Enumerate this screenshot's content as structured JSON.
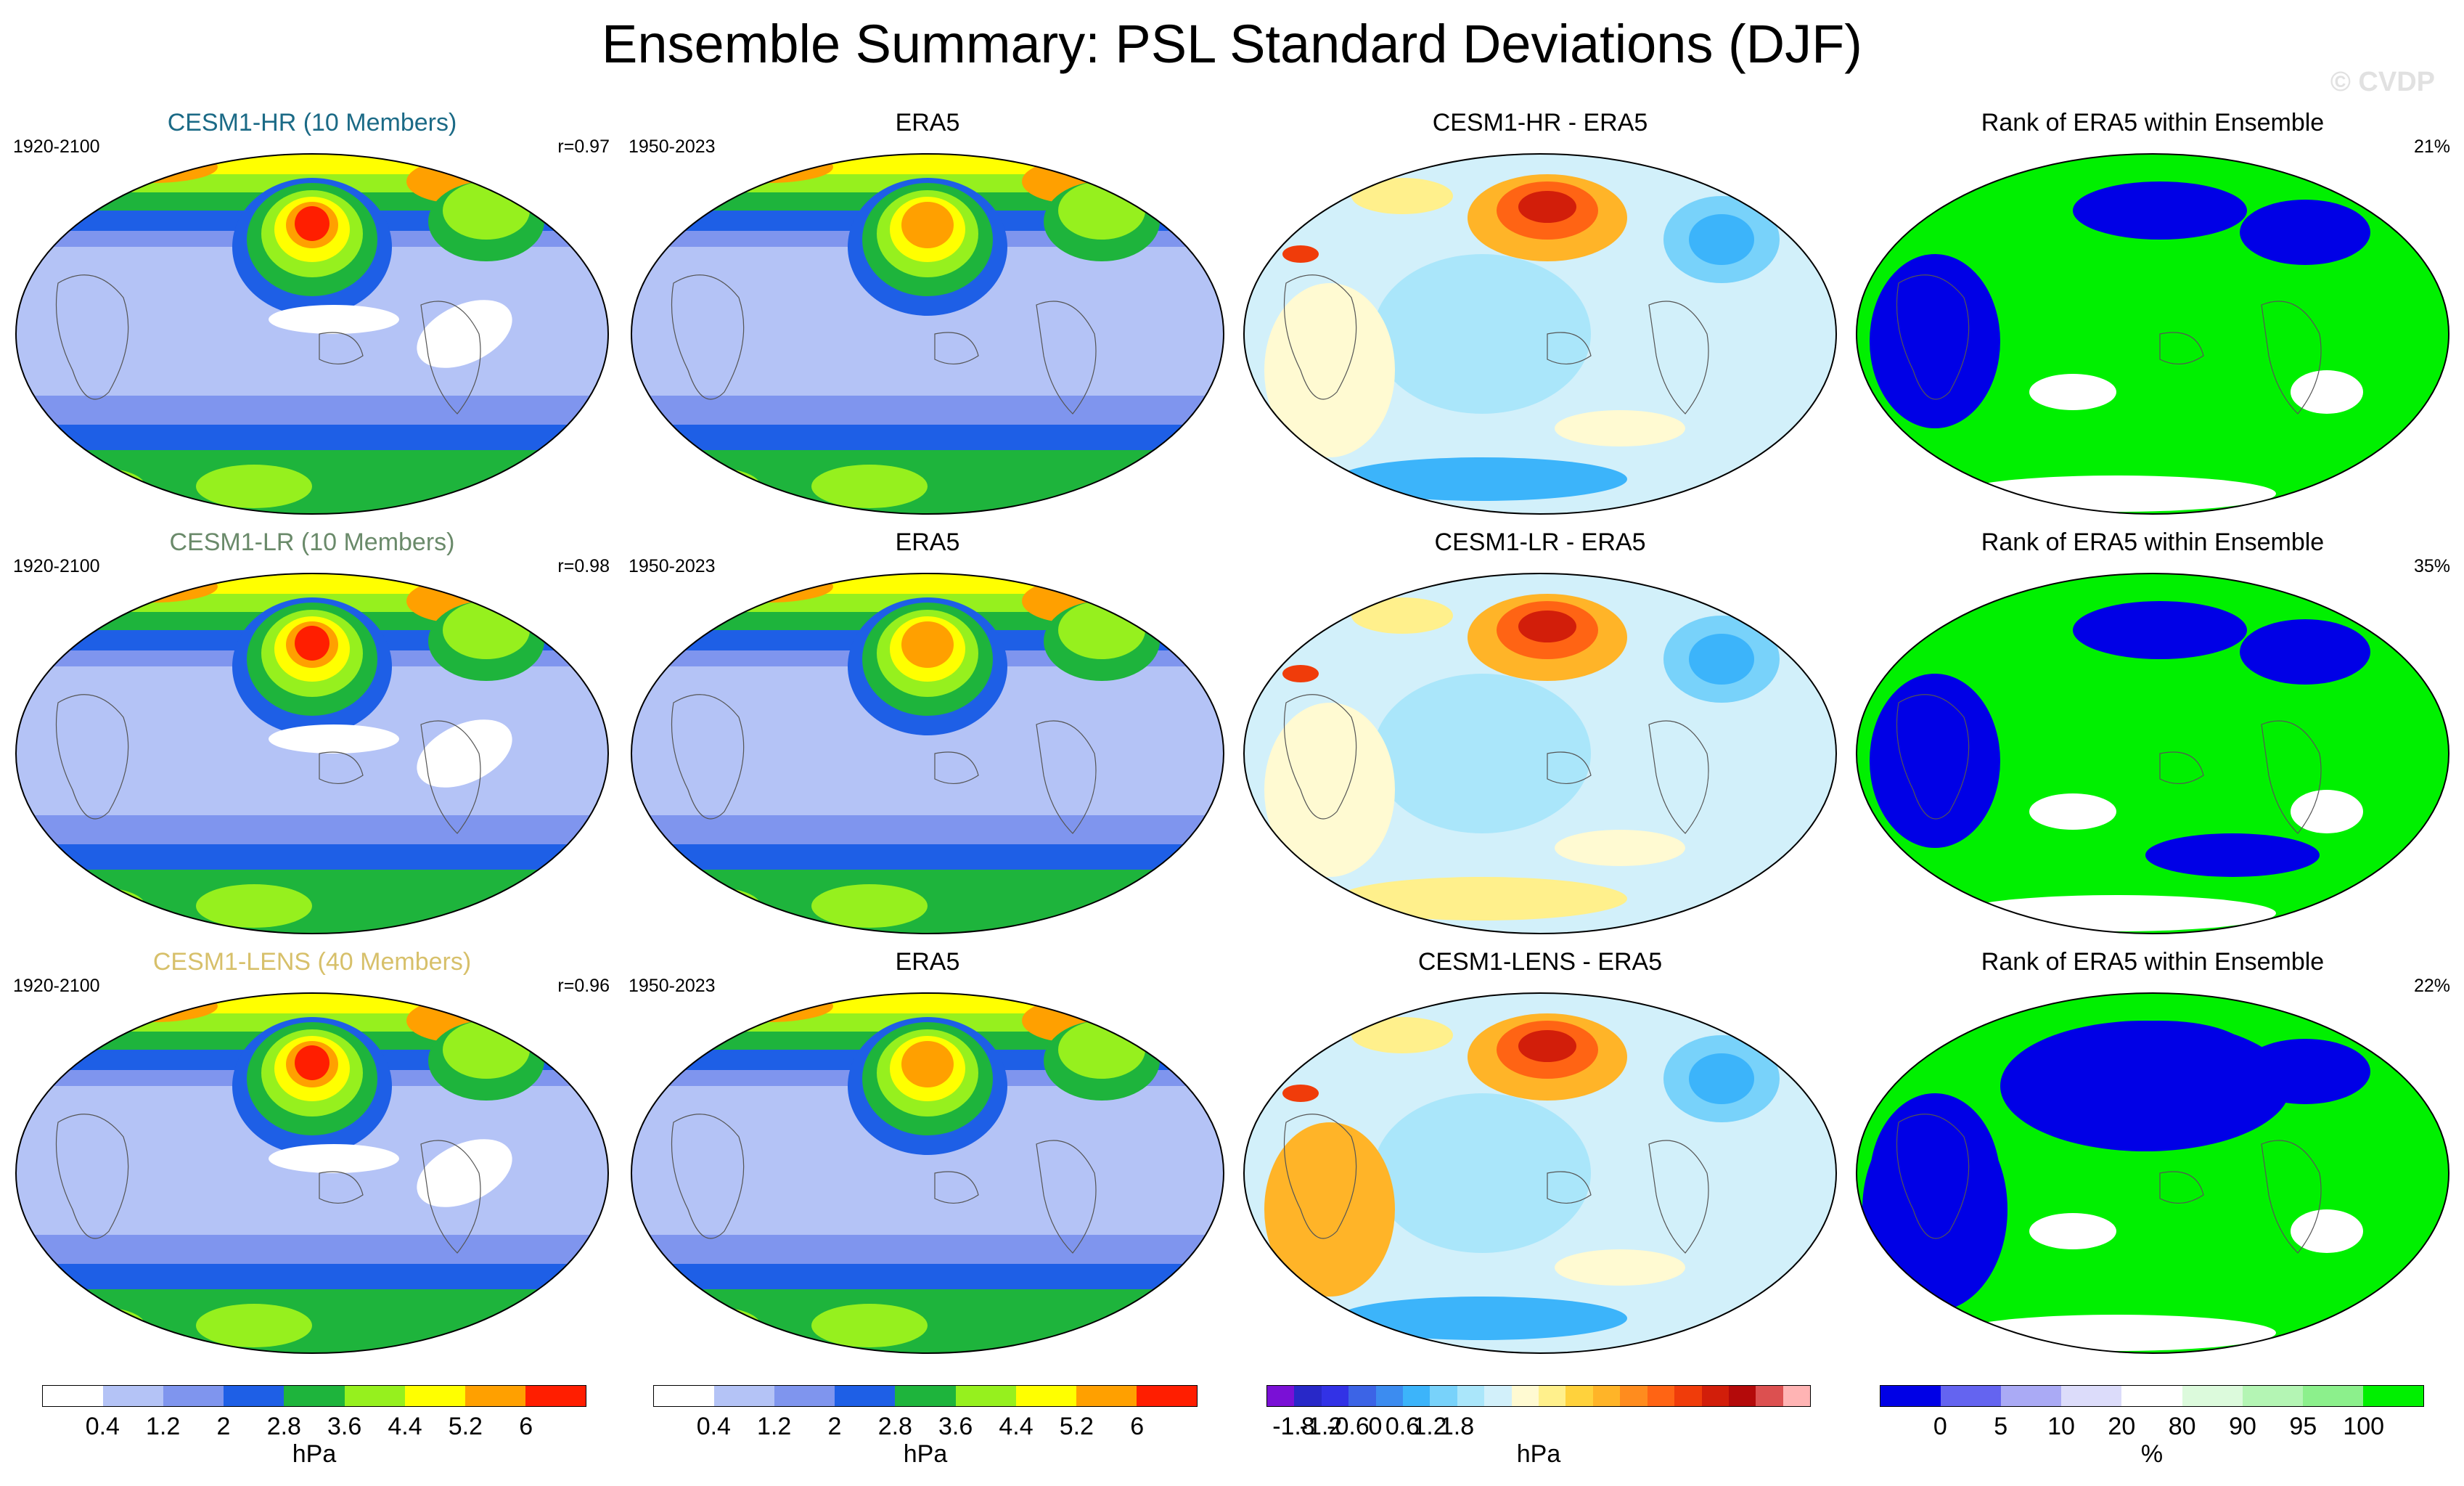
{
  "title": "Ensemble Summary: PSL Standard Deviations (DJF)",
  "watermark": "© CVDP",
  "rows": [
    {
      "model": {
        "title": "CESM1-HR (10 Members)",
        "title_color": "#1b6a86",
        "period": "1920-2100",
        "stat": "r=0.97"
      },
      "obs": {
        "title": "ERA5",
        "period": "1950-2023"
      },
      "diff": {
        "title": "CESM1-HR - ERA5"
      },
      "rank": {
        "title": "Rank of ERA5 within Ensemble",
        "stat": "21%"
      }
    },
    {
      "model": {
        "title": "CESM1-LR (10 Members)",
        "title_color": "#6a8a6a",
        "period": "1920-2100",
        "stat": "r=0.98"
      },
      "obs": {
        "title": "ERA5",
        "period": "1950-2023"
      },
      "diff": {
        "title": "CESM1-LR - ERA5"
      },
      "rank": {
        "title": "Rank of ERA5 within Ensemble",
        "stat": "35%"
      }
    },
    {
      "model": {
        "title": "CESM1-LENS (40 Members)",
        "title_color": "#d7c06a",
        "period": "1920-2100",
        "stat": "r=0.96"
      },
      "obs": {
        "title": "ERA5",
        "period": "1950-2023"
      },
      "diff": {
        "title": "CESM1-LENS - ERA5"
      },
      "rank": {
        "title": "Rank of ERA5 within Ensemble",
        "stat": "22%"
      }
    }
  ],
  "colorbars": [
    {
      "name": "std",
      "unit": "hPa",
      "colors": [
        "#ffffff",
        "#b4c3f6",
        "#7f95ee",
        "#1e5fe6",
        "#1eb43c",
        "#96f01e",
        "#ffff00",
        "#ffa000",
        "#ff1e00"
      ],
      "ticks": [
        "0.4",
        "1.2",
        "2",
        "2.8",
        "3.6",
        "4.4",
        "5.2",
        "6"
      ]
    },
    {
      "name": "std",
      "unit": "hPa",
      "colors": [
        "#ffffff",
        "#b4c3f6",
        "#7f95ee",
        "#1e5fe6",
        "#1eb43c",
        "#96f01e",
        "#ffff00",
        "#ffa000",
        "#ff1e00"
      ],
      "ticks": [
        "0.4",
        "1.2",
        "2",
        "2.8",
        "3.6",
        "4.4",
        "5.2",
        "6"
      ]
    },
    {
      "name": "diff",
      "unit": "hPa",
      "colors": [
        "#7a10d6",
        "#2828c8",
        "#3232e6",
        "#3c64e6",
        "#3c8cf0",
        "#3cb4fa",
        "#78d2fa",
        "#aae6fa",
        "#d2f0fa",
        "#fffad2",
        "#fff08c",
        "#ffd23c",
        "#ffb428",
        "#ff8c1e",
        "#ff6414",
        "#f03c0a",
        "#d21e0a",
        "#b40a0a",
        "#dc5050",
        "#ffb4b4"
      ],
      "ticks": [
        "-1.8",
        "-1.2",
        "-0.6",
        "0",
        "0.6",
        "1.2",
        "1.8"
      ]
    },
    {
      "name": "rank",
      "unit": "%",
      "colors": [
        "#0000e6",
        "#6464f0",
        "#aaaaf5",
        "#dcdcfa",
        "#ffffff",
        "#dcfadc",
        "#b4f5b4",
        "#8cf08c",
        "#00f000"
      ],
      "ticks": [
        "0",
        "5",
        "10",
        "20",
        "80",
        "90",
        "95",
        "100"
      ]
    }
  ]
}
